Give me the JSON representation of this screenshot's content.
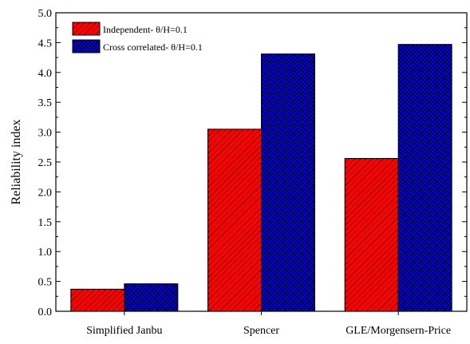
{
  "chart_data": {
    "type": "bar",
    "ylabel": "Reliability index",
    "xlabel": "",
    "ylim": [
      0,
      5.0
    ],
    "yticks": [
      "0.0",
      "0.5",
      "1.0",
      "1.5",
      "2.0",
      "2.5",
      "3.0",
      "3.5",
      "4.0",
      "4.5",
      "5.0"
    ],
    "categories": [
      "Simplified Janbu",
      "Spencer",
      "GLE/Morgensern-Price"
    ],
    "series": [
      {
        "name": "Independent- θ/H=0.1",
        "values": [
          0.37,
          3.05,
          2.56
        ],
        "color": "#ff0000",
        "pattern": "diagonal-hatch"
      },
      {
        "name": "Cross correlated- θ/H=0.1",
        "values": [
          0.46,
          4.31,
          4.47
        ],
        "color": "#0000ff",
        "pattern": "cross-hatch"
      }
    ],
    "legend_position": "top-left",
    "grid": false
  }
}
